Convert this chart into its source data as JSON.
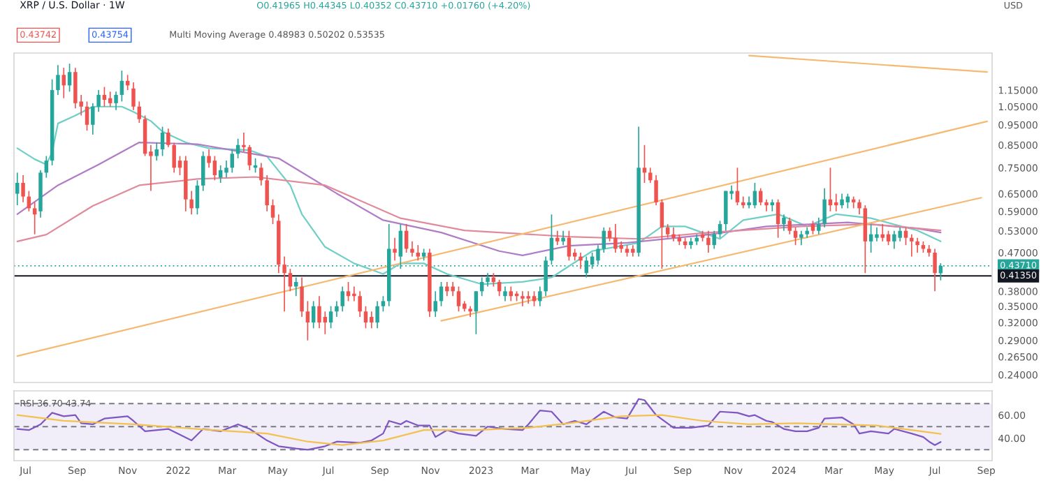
{
  "chart_data": [
    {
      "type": "candlestick",
      "title": "XRP / U.S. Dollar · 1W",
      "annotations": [
        "O0.41965 H0.44345 L0.40352 C0.43710 +0.01760 (+4.20%)",
        "0.43742",
        "0.43754",
        "Multi Moving Average 0.48983 0.50202 0.53535",
        "USD"
      ],
      "x": [
        "2021-06-21",
        "2021-06-28",
        "2021-07-05",
        "2021-07-12",
        "2021-07-19",
        "2021-07-26",
        "2021-08-02",
        "2021-08-09",
        "2021-08-16",
        "2021-08-23",
        "2021-08-30",
        "2021-09-06",
        "2021-09-13",
        "2021-09-20",
        "2021-09-27",
        "2021-10-04",
        "2021-10-11",
        "2021-10-18",
        "2021-10-25",
        "2021-11-01",
        "2021-11-08",
        "2021-11-15",
        "2021-11-22",
        "2021-11-29",
        "2021-12-06",
        "2021-12-13",
        "2021-12-20",
        "2021-12-27",
        "2022-01-03",
        "2022-01-10",
        "2022-01-17",
        "2022-01-24",
        "2022-01-31",
        "2022-02-07",
        "2022-02-14",
        "2022-02-21",
        "2022-02-28",
        "2022-03-07",
        "2022-03-14",
        "2022-03-21",
        "2022-03-28",
        "2022-04-04",
        "2022-04-11",
        "2022-04-18",
        "2022-04-25",
        "2022-05-02",
        "2022-05-09",
        "2022-05-16",
        "2022-05-23",
        "2022-05-30",
        "2022-06-06",
        "2022-06-13",
        "2022-06-20",
        "2022-06-27",
        "2022-07-04",
        "2022-07-11",
        "2022-07-18",
        "2022-07-25",
        "2022-08-01",
        "2022-08-08",
        "2022-08-15",
        "2022-08-22",
        "2022-08-29",
        "2022-09-05",
        "2022-09-12",
        "2022-09-19",
        "2022-09-26",
        "2022-10-03",
        "2022-10-10",
        "2022-10-17",
        "2022-10-24",
        "2022-10-31",
        "2022-11-07",
        "2022-11-14",
        "2022-11-21",
        "2022-11-28",
        "2022-12-05",
        "2022-12-12",
        "2022-12-19",
        "2022-12-26",
        "2023-01-02",
        "2023-01-09",
        "2023-01-16",
        "2023-01-23",
        "2023-01-30",
        "2023-02-06",
        "2023-02-13",
        "2023-02-20",
        "2023-02-27",
        "2023-03-06",
        "2023-03-13",
        "2023-03-20",
        "2023-03-27",
        "2023-04-03",
        "2023-04-10",
        "2023-04-17",
        "2023-04-24",
        "2023-05-01",
        "2023-05-08",
        "2023-05-15",
        "2023-05-22",
        "2023-05-29",
        "2023-06-05",
        "2023-06-12",
        "2023-06-19",
        "2023-06-26",
        "2023-07-03",
        "2023-07-10",
        "2023-07-17",
        "2023-07-24",
        "2023-07-31",
        "2023-08-07",
        "2023-08-14",
        "2023-08-21",
        "2023-08-28",
        "2023-09-04",
        "2023-09-11",
        "2023-09-18",
        "2023-09-25",
        "2023-10-02",
        "2023-10-09",
        "2023-10-16",
        "2023-10-23",
        "2023-10-30",
        "2023-11-06",
        "2023-11-13",
        "2023-11-20",
        "2023-11-27",
        "2023-12-04",
        "2023-12-11",
        "2023-12-18",
        "2023-12-25",
        "2024-01-01",
        "2024-01-08",
        "2024-01-15",
        "2024-01-22",
        "2024-01-29",
        "2024-02-05",
        "2024-02-12",
        "2024-02-19",
        "2024-02-26",
        "2024-03-04",
        "2024-03-11",
        "2024-03-18",
        "2024-03-25",
        "2024-04-01",
        "2024-04-08",
        "2024-04-15",
        "2024-04-22",
        "2024-04-29",
        "2024-05-06",
        "2024-05-13",
        "2024-05-20",
        "2024-05-27",
        "2024-06-03",
        "2024-06-10",
        "2024-06-17",
        "2024-06-24",
        "2024-07-01",
        "2024-07-08"
      ],
      "ohlc": [
        [
          0.65,
          0.73,
          0.61,
          0.69
        ],
        [
          0.69,
          0.72,
          0.62,
          0.64
        ],
        [
          0.64,
          0.66,
          0.59,
          0.6
        ],
        [
          0.6,
          0.62,
          0.52,
          0.58
        ],
        [
          0.59,
          0.74,
          0.57,
          0.73
        ],
        [
          0.73,
          0.8,
          0.71,
          0.78
        ],
        [
          0.78,
          1.22,
          0.76,
          1.15
        ],
        [
          1.15,
          1.32,
          1.12,
          1.25
        ],
        [
          1.25,
          1.3,
          1.1,
          1.18
        ],
        [
          1.18,
          1.33,
          1.14,
          1.27
        ],
        [
          1.27,
          1.3,
          1.04,
          1.07
        ],
        [
          1.08,
          1.12,
          1.0,
          1.05
        ],
        [
          1.05,
          1.08,
          0.92,
          0.95
        ],
        [
          0.95,
          1.07,
          0.9,
          1.05
        ],
        [
          1.05,
          1.15,
          1.02,
          1.12
        ],
        [
          1.12,
          1.17,
          1.05,
          1.09
        ],
        [
          1.1,
          1.14,
          1.05,
          1.07
        ],
        [
          1.07,
          1.14,
          1.03,
          1.12
        ],
        [
          1.12,
          1.28,
          1.08,
          1.21
        ],
        [
          1.21,
          1.25,
          1.15,
          1.18
        ],
        [
          1.16,
          1.2,
          1.03,
          1.05
        ],
        [
          1.05,
          1.08,
          0.96,
          0.98
        ],
        [
          0.98,
          1.0,
          0.8,
          0.81
        ],
        [
          0.82,
          0.85,
          0.66,
          0.8
        ],
        [
          0.8,
          0.86,
          0.78,
          0.83
        ],
        [
          0.83,
          0.94,
          0.8,
          0.91
        ],
        [
          0.91,
          0.93,
          0.84,
          0.85
        ],
        [
          0.85,
          0.86,
          0.73,
          0.75
        ],
        [
          0.78,
          0.8,
          0.72,
          0.75
        ],
        [
          0.78,
          0.8,
          0.59,
          0.63
        ],
        [
          0.63,
          0.66,
          0.58,
          0.6
        ],
        [
          0.6,
          0.7,
          0.58,
          0.68
        ],
        [
          0.68,
          0.82,
          0.66,
          0.8
        ],
        [
          0.8,
          0.83,
          0.75,
          0.77
        ],
        [
          0.78,
          0.8,
          0.7,
          0.72
        ],
        [
          0.71,
          0.76,
          0.69,
          0.74
        ],
        [
          0.73,
          0.78,
          0.71,
          0.75
        ],
        [
          0.75,
          0.83,
          0.73,
          0.81
        ],
        [
          0.81,
          0.88,
          0.79,
          0.85
        ],
        [
          0.85,
          0.91,
          0.82,
          0.84
        ],
        [
          0.84,
          0.85,
          0.74,
          0.76
        ],
        [
          0.75,
          0.79,
          0.73,
          0.76
        ],
        [
          0.75,
          0.77,
          0.68,
          0.7
        ],
        [
          0.7,
          0.72,
          0.59,
          0.61
        ],
        [
          0.61,
          0.63,
          0.55,
          0.57
        ],
        [
          0.56,
          0.58,
          0.42,
          0.44
        ],
        [
          0.44,
          0.46,
          0.34,
          0.42
        ],
        [
          0.42,
          0.43,
          0.38,
          0.39
        ],
        [
          0.39,
          0.41,
          0.37,
          0.4
        ],
        [
          0.39,
          0.41,
          0.33,
          0.34
        ],
        [
          0.34,
          0.36,
          0.29,
          0.32
        ],
        [
          0.32,
          0.36,
          0.31,
          0.35
        ],
        [
          0.35,
          0.37,
          0.31,
          0.32
        ],
        [
          0.33,
          0.34,
          0.3,
          0.32
        ],
        [
          0.32,
          0.35,
          0.31,
          0.34
        ],
        [
          0.34,
          0.36,
          0.33,
          0.35
        ],
        [
          0.35,
          0.39,
          0.34,
          0.38
        ],
        [
          0.38,
          0.4,
          0.36,
          0.37
        ],
        [
          0.375,
          0.39,
          0.36,
          0.37
        ],
        [
          0.37,
          0.38,
          0.33,
          0.34
        ],
        [
          0.34,
          0.35,
          0.31,
          0.32
        ],
        [
          0.33,
          0.34,
          0.31,
          0.32
        ],
        [
          0.32,
          0.36,
          0.31,
          0.35
        ],
        [
          0.35,
          0.37,
          0.34,
          0.36
        ],
        [
          0.36,
          0.55,
          0.35,
          0.48
        ],
        [
          0.48,
          0.51,
          0.45,
          0.47
        ],
        [
          0.46,
          0.55,
          0.43,
          0.53
        ],
        [
          0.53,
          0.55,
          0.47,
          0.48
        ],
        [
          0.48,
          0.5,
          0.46,
          0.47
        ],
        [
          0.47,
          0.49,
          0.45,
          0.46
        ],
        [
          0.46,
          0.48,
          0.45,
          0.47
        ],
        [
          0.47,
          0.48,
          0.33,
          0.34
        ],
        [
          0.34,
          0.38,
          0.33,
          0.36
        ],
        [
          0.36,
          0.4,
          0.35,
          0.39
        ],
        [
          0.39,
          0.4,
          0.37,
          0.38
        ],
        [
          0.39,
          0.4,
          0.37,
          0.38
        ],
        [
          0.38,
          0.39,
          0.34,
          0.35
        ],
        [
          0.355,
          0.36,
          0.34,
          0.345
        ],
        [
          0.345,
          0.35,
          0.33,
          0.34
        ],
        [
          0.34,
          0.38,
          0.3,
          0.38
        ],
        [
          0.38,
          0.41,
          0.37,
          0.4
        ],
        [
          0.4,
          0.42,
          0.39,
          0.41
        ],
        [
          0.41,
          0.42,
          0.39,
          0.4
        ],
        [
          0.4,
          0.405,
          0.37,
          0.38
        ],
        [
          0.37,
          0.39,
          0.36,
          0.38
        ],
        [
          0.38,
          0.39,
          0.36,
          0.37
        ],
        [
          0.375,
          0.38,
          0.36,
          0.37
        ],
        [
          0.37,
          0.38,
          0.35,
          0.365
        ],
        [
          0.37,
          0.38,
          0.355,
          0.365
        ],
        [
          0.37,
          0.38,
          0.35,
          0.36
        ],
        [
          0.36,
          0.39,
          0.35,
          0.38
        ],
        [
          0.38,
          0.46,
          0.37,
          0.45
        ],
        [
          0.45,
          0.58,
          0.44,
          0.51
        ],
        [
          0.51,
          0.53,
          0.49,
          0.5
        ],
        [
          0.5,
          0.53,
          0.49,
          0.51
        ],
        [
          0.51,
          0.53,
          0.45,
          0.46
        ],
        [
          0.47,
          0.48,
          0.45,
          0.46
        ],
        [
          0.46,
          0.47,
          0.43,
          0.45
        ],
        [
          0.42,
          0.46,
          0.41,
          0.45
        ],
        [
          0.44,
          0.47,
          0.43,
          0.46
        ],
        [
          0.45,
          0.49,
          0.44,
          0.48
        ],
        [
          0.48,
          0.54,
          0.47,
          0.53
        ],
        [
          0.53,
          0.54,
          0.5,
          0.51
        ],
        [
          0.51,
          0.55,
          0.47,
          0.48
        ],
        [
          0.49,
          0.5,
          0.47,
          0.48
        ],
        [
          0.48,
          0.49,
          0.46,
          0.47
        ],
        [
          0.48,
          0.49,
          0.46,
          0.47
        ],
        [
          0.47,
          0.94,
          0.46,
          0.75
        ],
        [
          0.75,
          0.85,
          0.69,
          0.73
        ],
        [
          0.73,
          0.75,
          0.69,
          0.7
        ],
        [
          0.7,
          0.72,
          0.61,
          0.62
        ],
        [
          0.62,
          0.63,
          0.43,
          0.54
        ],
        [
          0.54,
          0.55,
          0.51,
          0.52
        ],
        [
          0.52,
          0.54,
          0.5,
          0.51
        ],
        [
          0.51,
          0.52,
          0.49,
          0.5
        ],
        [
          0.5,
          0.51,
          0.48,
          0.49
        ],
        [
          0.49,
          0.51,
          0.48,
          0.5
        ],
        [
          0.5,
          0.52,
          0.49,
          0.51
        ],
        [
          0.52,
          0.53,
          0.5,
          0.51
        ],
        [
          0.51,
          0.53,
          0.47,
          0.49
        ],
        [
          0.49,
          0.53,
          0.48,
          0.52
        ],
        [
          0.52,
          0.56,
          0.51,
          0.55
        ],
        [
          0.55,
          0.66,
          0.53,
          0.66
        ],
        [
          0.65,
          0.68,
          0.63,
          0.66
        ],
        [
          0.66,
          0.75,
          0.61,
          0.62
        ],
        [
          0.62,
          0.64,
          0.6,
          0.61
        ],
        [
          0.61,
          0.64,
          0.6,
          0.62
        ],
        [
          0.61,
          0.69,
          0.6,
          0.66
        ],
        [
          0.66,
          0.67,
          0.61,
          0.62
        ],
        [
          0.62,
          0.63,
          0.59,
          0.61
        ],
        [
          0.61,
          0.63,
          0.59,
          0.62
        ],
        [
          0.62,
          0.63,
          0.51,
          0.55
        ],
        [
          0.55,
          0.58,
          0.53,
          0.57
        ],
        [
          0.56,
          0.57,
          0.52,
          0.53
        ],
        [
          0.53,
          0.54,
          0.49,
          0.51
        ],
        [
          0.51,
          0.53,
          0.49,
          0.52
        ],
        [
          0.52,
          0.54,
          0.51,
          0.53
        ],
        [
          0.55,
          0.56,
          0.52,
          0.53
        ],
        [
          0.53,
          0.57,
          0.52,
          0.55
        ],
        [
          0.55,
          0.67,
          0.54,
          0.63
        ],
        [
          0.63,
          0.75,
          0.59,
          0.61
        ],
        [
          0.62,
          0.65,
          0.59,
          0.61
        ],
        [
          0.61,
          0.65,
          0.6,
          0.63
        ],
        [
          0.62,
          0.65,
          0.6,
          0.64
        ],
        [
          0.63,
          0.64,
          0.6,
          0.62
        ],
        [
          0.62,
          0.63,
          0.58,
          0.6
        ],
        [
          0.6,
          0.61,
          0.42,
          0.5
        ],
        [
          0.5,
          0.55,
          0.47,
          0.52
        ],
        [
          0.51,
          0.54,
          0.5,
          0.52
        ],
        [
          0.52,
          0.55,
          0.5,
          0.51
        ],
        [
          0.52,
          0.53,
          0.49,
          0.5
        ],
        [
          0.5,
          0.53,
          0.48,
          0.52
        ],
        [
          0.51,
          0.54,
          0.5,
          0.53
        ],
        [
          0.53,
          0.54,
          0.49,
          0.51
        ],
        [
          0.51,
          0.52,
          0.46,
          0.5
        ],
        [
          0.5,
          0.51,
          0.47,
          0.49
        ],
        [
          0.49,
          0.5,
          0.47,
          0.48
        ],
        [
          0.48,
          0.49,
          0.46,
          0.47
        ],
        [
          0.47,
          0.48,
          0.38,
          0.42
        ],
        [
          0.41965,
          0.44345,
          0.40352,
          0.4371
        ]
      ],
      "series": [
        {
          "type": "line",
          "color": "#6fcfc7",
          "x": [
            "2021-06-21",
            "2021-07-12",
            "2021-07-26",
            "2021-08-02",
            "2021-08-09",
            "2021-08-30",
            "2021-09-20",
            "2021-10-25",
            "2021-11-08",
            "2021-11-29",
            "2021-12-13",
            "2022-01-10",
            "2022-02-07",
            "2022-03-28",
            "2022-04-18",
            "2022-05-16",
            "2022-05-30",
            "2022-06-27",
            "2022-08-01",
            "2022-09-05",
            "2022-09-26",
            "2022-10-24",
            "2022-11-21",
            "2023-01-02",
            "2023-02-20",
            "2023-03-27",
            "2023-05-15",
            "2023-07-10",
            "2023-08-07",
            "2023-09-04",
            "2023-10-16",
            "2023-11-13",
            "2023-12-25",
            "2024-01-29",
            "2024-03-04",
            "2024-04-15",
            "2024-06-10",
            "2024-07-08"
          ],
          "values": [
            0.835,
            0.786,
            0.763,
            0.817,
            0.957,
            1.0,
            1.05,
            1.05,
            1.02,
            0.97,
            0.915,
            0.862,
            0.835,
            0.826,
            0.798,
            0.681,
            0.581,
            0.485,
            0.443,
            0.418,
            0.443,
            0.443,
            0.418,
            0.395,
            0.4,
            0.41,
            0.474,
            0.496,
            0.543,
            0.543,
            0.507,
            0.562,
            0.581,
            0.543,
            0.581,
            0.568,
            0.531,
            0.5
          ]
        },
        {
          "type": "line",
          "color": "#b07cc6",
          "x": [
            "2021-06-21",
            "2021-08-09",
            "2021-09-27",
            "2021-11-15",
            "2022-01-24",
            "2022-03-21",
            "2022-05-02",
            "2022-07-11",
            "2022-09-05",
            "2022-11-14",
            "2023-01-23",
            "2023-02-20",
            "2023-04-17",
            "2023-06-26",
            "2023-10-02",
            "2023-12-11",
            "2024-03-18",
            "2024-06-10",
            "2024-07-08"
          ],
          "values": [
            0.581,
            0.681,
            0.763,
            0.862,
            0.854,
            0.817,
            0.79,
            0.651,
            0.562,
            0.525,
            0.474,
            0.463,
            0.488,
            0.496,
            0.519,
            0.543,
            0.555,
            0.537,
            0.525
          ]
        },
        {
          "type": "line",
          "color": "#e08a9b",
          "x": [
            "2021-06-21",
            "2021-07-26",
            "2021-09-20",
            "2021-11-15",
            "2022-01-24",
            "2022-04-04",
            "2022-06-27",
            "2022-09-26",
            "2022-12-12",
            "2023-02-20",
            "2023-04-17",
            "2023-07-10",
            "2023-10-02",
            "2024-01-22",
            "2024-04-15",
            "2024-07-08"
          ],
          "values": [
            0.5,
            0.519,
            0.608,
            0.681,
            0.705,
            0.713,
            0.681,
            0.568,
            0.531,
            0.521,
            0.513,
            0.507,
            0.525,
            0.543,
            0.55,
            0.531
          ]
        },
        {
          "type": "line",
          "color": "#f5b971",
          "x": [
            "2021-06-21",
            "2024-09-02"
          ],
          "values": [
            0.266,
            0.968
          ]
        },
        {
          "type": "line",
          "color": "#f5b971",
          "x": [
            "2022-11-14",
            "2024-08-26"
          ],
          "values": [
            0.323,
            0.636
          ]
        },
        {
          "type": "line",
          "color": "#f5b971",
          "x": [
            "2023-11-20",
            "2024-09-02"
          ],
          "values": [
            1.39,
            1.27
          ]
        }
      ],
      "log": true,
      "ylim": [
        0.23,
        1.41
      ],
      "yticks": [
        {
          "value": 0.24,
          "label": "0.24000"
        },
        {
          "value": 0.265,
          "label": "0.26500"
        },
        {
          "value": 0.29,
          "label": "0.29000"
        },
        {
          "value": 0.32,
          "label": "0.32000"
        },
        {
          "value": 0.35,
          "label": "0.35000"
        },
        {
          "value": 0.38,
          "label": "0.38000"
        },
        {
          "value": 0.47,
          "label": "0.47000"
        },
        {
          "value": 0.53,
          "label": "0.53000"
        },
        {
          "value": 0.59,
          "label": "0.59000"
        },
        {
          "value": 0.65,
          "label": "0.65000"
        },
        {
          "value": 0.75,
          "label": "0.75000"
        },
        {
          "value": 0.85,
          "label": "0.85000"
        },
        {
          "value": 0.95,
          "label": "0.95000"
        },
        {
          "value": 1.05,
          "label": "1.05000"
        },
        {
          "value": 1.15,
          "label": "1.15000"
        }
      ],
      "xlim": [
        "2021-06-17",
        "2024-09-08"
      ],
      "tick_labels": "y",
      "ref_lines": [
        {
          "axis": "y",
          "value": 0.4371,
          "label": "0.43710",
          "color": "#26a69a",
          "line_style": "dotted"
        },
        {
          "axis": "y",
          "value": 0.4135,
          "label": "0.41350",
          "color": "#131722",
          "line_style": "solid"
        }
      ]
    },
    {
      "type": "line",
      "annotations": [
        "RSI 36.70 43.74"
      ],
      "series": [
        {
          "color": "#7e57c2",
          "x": [
            "2021-06-21",
            "2021-07-05",
            "2021-07-19",
            "2021-08-02",
            "2021-08-16",
            "2021-08-30",
            "2021-09-06",
            "2021-09-20",
            "2021-10-04",
            "2021-11-01",
            "2021-11-08",
            "2021-11-22",
            "2021-12-20",
            "2022-01-17",
            "2022-01-31",
            "2022-02-21",
            "2022-03-14",
            "2022-03-28",
            "2022-04-18",
            "2022-05-02",
            "2022-05-23",
            "2022-06-06",
            "2022-06-27",
            "2022-07-11",
            "2022-08-08",
            "2022-08-22",
            "2022-09-05",
            "2022-09-12",
            "2022-09-26",
            "2022-10-03",
            "2022-10-17",
            "2022-10-31",
            "2022-11-07",
            "2022-11-21",
            "2022-12-05",
            "2022-12-26",
            "2023-01-09",
            "2023-01-30",
            "2023-02-20",
            "2023-02-27",
            "2023-03-13",
            "2023-03-27",
            "2023-04-10",
            "2023-04-24",
            "2023-05-08",
            "2023-05-29",
            "2023-06-12",
            "2023-06-26",
            "2023-07-10",
            "2023-07-17",
            "2023-07-31",
            "2023-08-21",
            "2023-09-11",
            "2023-10-02",
            "2023-10-16",
            "2023-11-06",
            "2023-11-20",
            "2023-11-27",
            "2023-12-11",
            "2023-12-18",
            "2024-01-01",
            "2024-01-15",
            "2024-01-29",
            "2024-02-12",
            "2024-02-19",
            "2024-03-11",
            "2024-03-25",
            "2024-04-01",
            "2024-04-15",
            "2024-05-06",
            "2024-05-13",
            "2024-06-03",
            "2024-06-17",
            "2024-06-24",
            "2024-07-01",
            "2024-07-08"
          ],
          "values": [
            48,
            47,
            52,
            62,
            59,
            60,
            53,
            52,
            57,
            59,
            55,
            46,
            48,
            38,
            48,
            46,
            52,
            48,
            38,
            33,
            31,
            30,
            33,
            37,
            36,
            38,
            44,
            55,
            52,
            55,
            51,
            51,
            41,
            47,
            44,
            42,
            50,
            48,
            47,
            52,
            64,
            63,
            52,
            55,
            52,
            63,
            58,
            57,
            74,
            73,
            60,
            49,
            49,
            51,
            63,
            62,
            59,
            60,
            55,
            54,
            48,
            46,
            46,
            49,
            57,
            58,
            52,
            44,
            46,
            44,
            48,
            44,
            41,
            37,
            34,
            36.7
          ]
        },
        {
          "color": "#f2c14e",
          "x": [
            "2021-06-21",
            "2021-08-16",
            "2021-11-08",
            "2022-01-24",
            "2022-04-18",
            "2022-06-06",
            "2022-07-18",
            "2022-09-05",
            "2022-10-24",
            "2022-12-26",
            "2023-02-27",
            "2023-04-17",
            "2023-06-19",
            "2023-08-07",
            "2023-09-25",
            "2023-11-20",
            "2024-01-15",
            "2024-03-04",
            "2024-04-22",
            "2024-06-03",
            "2024-07-08"
          ],
          "values": [
            60,
            55,
            52,
            48,
            44,
            37,
            34,
            38,
            47,
            47,
            49,
            53,
            59,
            60,
            55,
            52,
            53,
            52,
            51,
            47,
            43.74
          ]
        }
      ],
      "xlim": [
        "2021-06-17",
        "2024-09-08"
      ],
      "xticks": [
        {
          "value": "2021-07-01",
          "label": "Jul"
        },
        {
          "value": "2021-09-01",
          "label": "Sep"
        },
        {
          "value": "2021-11-01",
          "label": "Nov"
        },
        {
          "value": "2022-01-01",
          "label": "2022"
        },
        {
          "value": "2022-03-01",
          "label": "Mar"
        },
        {
          "value": "2022-05-01",
          "label": "May"
        },
        {
          "value": "2022-07-01",
          "label": "Jul"
        },
        {
          "value": "2022-09-01",
          "label": "Sep"
        },
        {
          "value": "2022-11-01",
          "label": "Nov"
        },
        {
          "value": "2023-01-01",
          "label": "2023"
        },
        {
          "value": "2023-03-01",
          "label": "Mar"
        },
        {
          "value": "2023-05-01",
          "label": "May"
        },
        {
          "value": "2023-07-01",
          "label": "Jul"
        },
        {
          "value": "2023-09-01",
          "label": "Sep"
        },
        {
          "value": "2023-11-01",
          "label": "Nov"
        },
        {
          "value": "2024-01-01",
          "label": "2024"
        },
        {
          "value": "2024-03-01",
          "label": "Mar"
        },
        {
          "value": "2024-05-01",
          "label": "May"
        },
        {
          "value": "2024-07-01",
          "label": "Jul"
        },
        {
          "value": "2024-09-01",
          "label": "Sep"
        }
      ],
      "ylim": [
        20.5,
        81
      ],
      "yticks": [
        {
          "value": 40,
          "label": "40.00"
        },
        {
          "value": 60,
          "label": "60.00"
        }
      ],
      "bands": [
        {
          "axis": "y",
          "from": 30,
          "to": 70,
          "color": "#7e57c2"
        }
      ],
      "ref_lines": [
        {
          "axis": "y",
          "value": 70,
          "color": "#787b86",
          "line_style": "dashed"
        },
        {
          "axis": "y",
          "value": 50,
          "color": "#787b86",
          "line_style": "dashed"
        },
        {
          "axis": "y",
          "value": 30,
          "color": "#787b86",
          "line_style": "dashed"
        }
      ]
    }
  ]
}
